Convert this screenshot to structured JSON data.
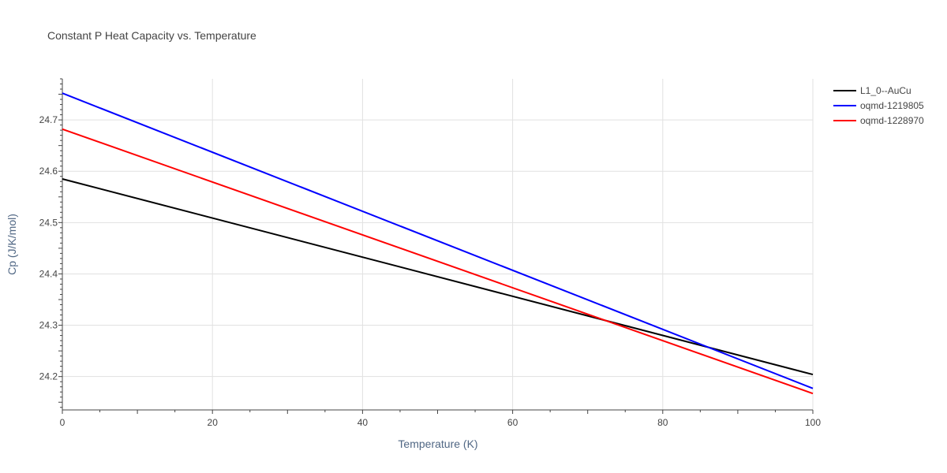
{
  "chart_data": {
    "type": "line",
    "title": "Constant P Heat Capacity vs. Temperature",
    "xlabel": "Temperature (K)",
    "ylabel": "Cp (J/K/mol)",
    "xlim": [
      0,
      100
    ],
    "ylim": [
      24.135,
      24.78
    ],
    "x_ticks": [
      0,
      20,
      40,
      60,
      80,
      100
    ],
    "y_ticks": [
      24.2,
      24.3,
      24.4,
      24.5,
      24.6,
      24.7
    ],
    "x_tick_labels": [
      "0",
      "20",
      "40",
      "60",
      "80",
      "100"
    ],
    "y_tick_labels": [
      "24.2",
      "24.3",
      "24.4",
      "24.5",
      "24.6",
      "24.7"
    ],
    "grid": true,
    "legend_position": "top-right",
    "series": [
      {
        "name": "L1_0--AuCu",
        "color": "#000000",
        "x": [
          0,
          100
        ],
        "values": [
          24.585,
          24.204
        ]
      },
      {
        "name": "oqmd-1219805",
        "color": "#0000ff",
        "x": [
          0,
          100
        ],
        "values": [
          24.752,
          24.177
        ]
      },
      {
        "name": "oqmd-1228970",
        "color": "#ff0000",
        "x": [
          0,
          100
        ],
        "values": [
          24.682,
          24.167
        ]
      }
    ]
  }
}
